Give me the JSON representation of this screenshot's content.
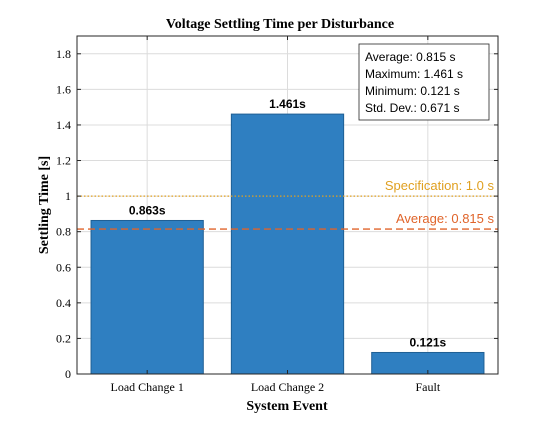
{
  "chart_data": {
    "type": "bar",
    "title": "Voltage Settling Time per Disturbance",
    "xlabel": "System Event",
    "ylabel": "Settling Time [s]",
    "categories": [
      "Load Change 1",
      "Load Change 2",
      "Fault"
    ],
    "values": [
      0.863,
      1.461,
      0.121
    ],
    "value_labels": [
      "0.863s",
      "1.461s",
      "0.121s"
    ],
    "ylim": [
      0,
      1.9
    ],
    "yticks": [
      0,
      0.2,
      0.4,
      0.6,
      0.8,
      1,
      1.2,
      1.4,
      1.6,
      1.8
    ],
    "ytick_labels": [
      "0",
      "0.2",
      "0.4",
      "0.6",
      "0.8",
      "1",
      "1.2",
      "1.4",
      "1.6",
      "1.8"
    ],
    "grid": true,
    "bar_color": "#2f7fc1",
    "reference_lines": [
      {
        "label": "Specification: 1.0 s",
        "value": 1.0,
        "style": "dotted",
        "color": "#e0a020"
      },
      {
        "label": "Average: 0.815 s",
        "value": 0.815,
        "style": "dashed",
        "color": "#e0642a"
      }
    ],
    "stats_box": {
      "placement": "top-right",
      "lines": [
        "Average: 0.815 s",
        "Maximum: 1.461 s",
        "Minimum: 0.121 s",
        "Std. Dev.: 0.671 s"
      ]
    }
  }
}
